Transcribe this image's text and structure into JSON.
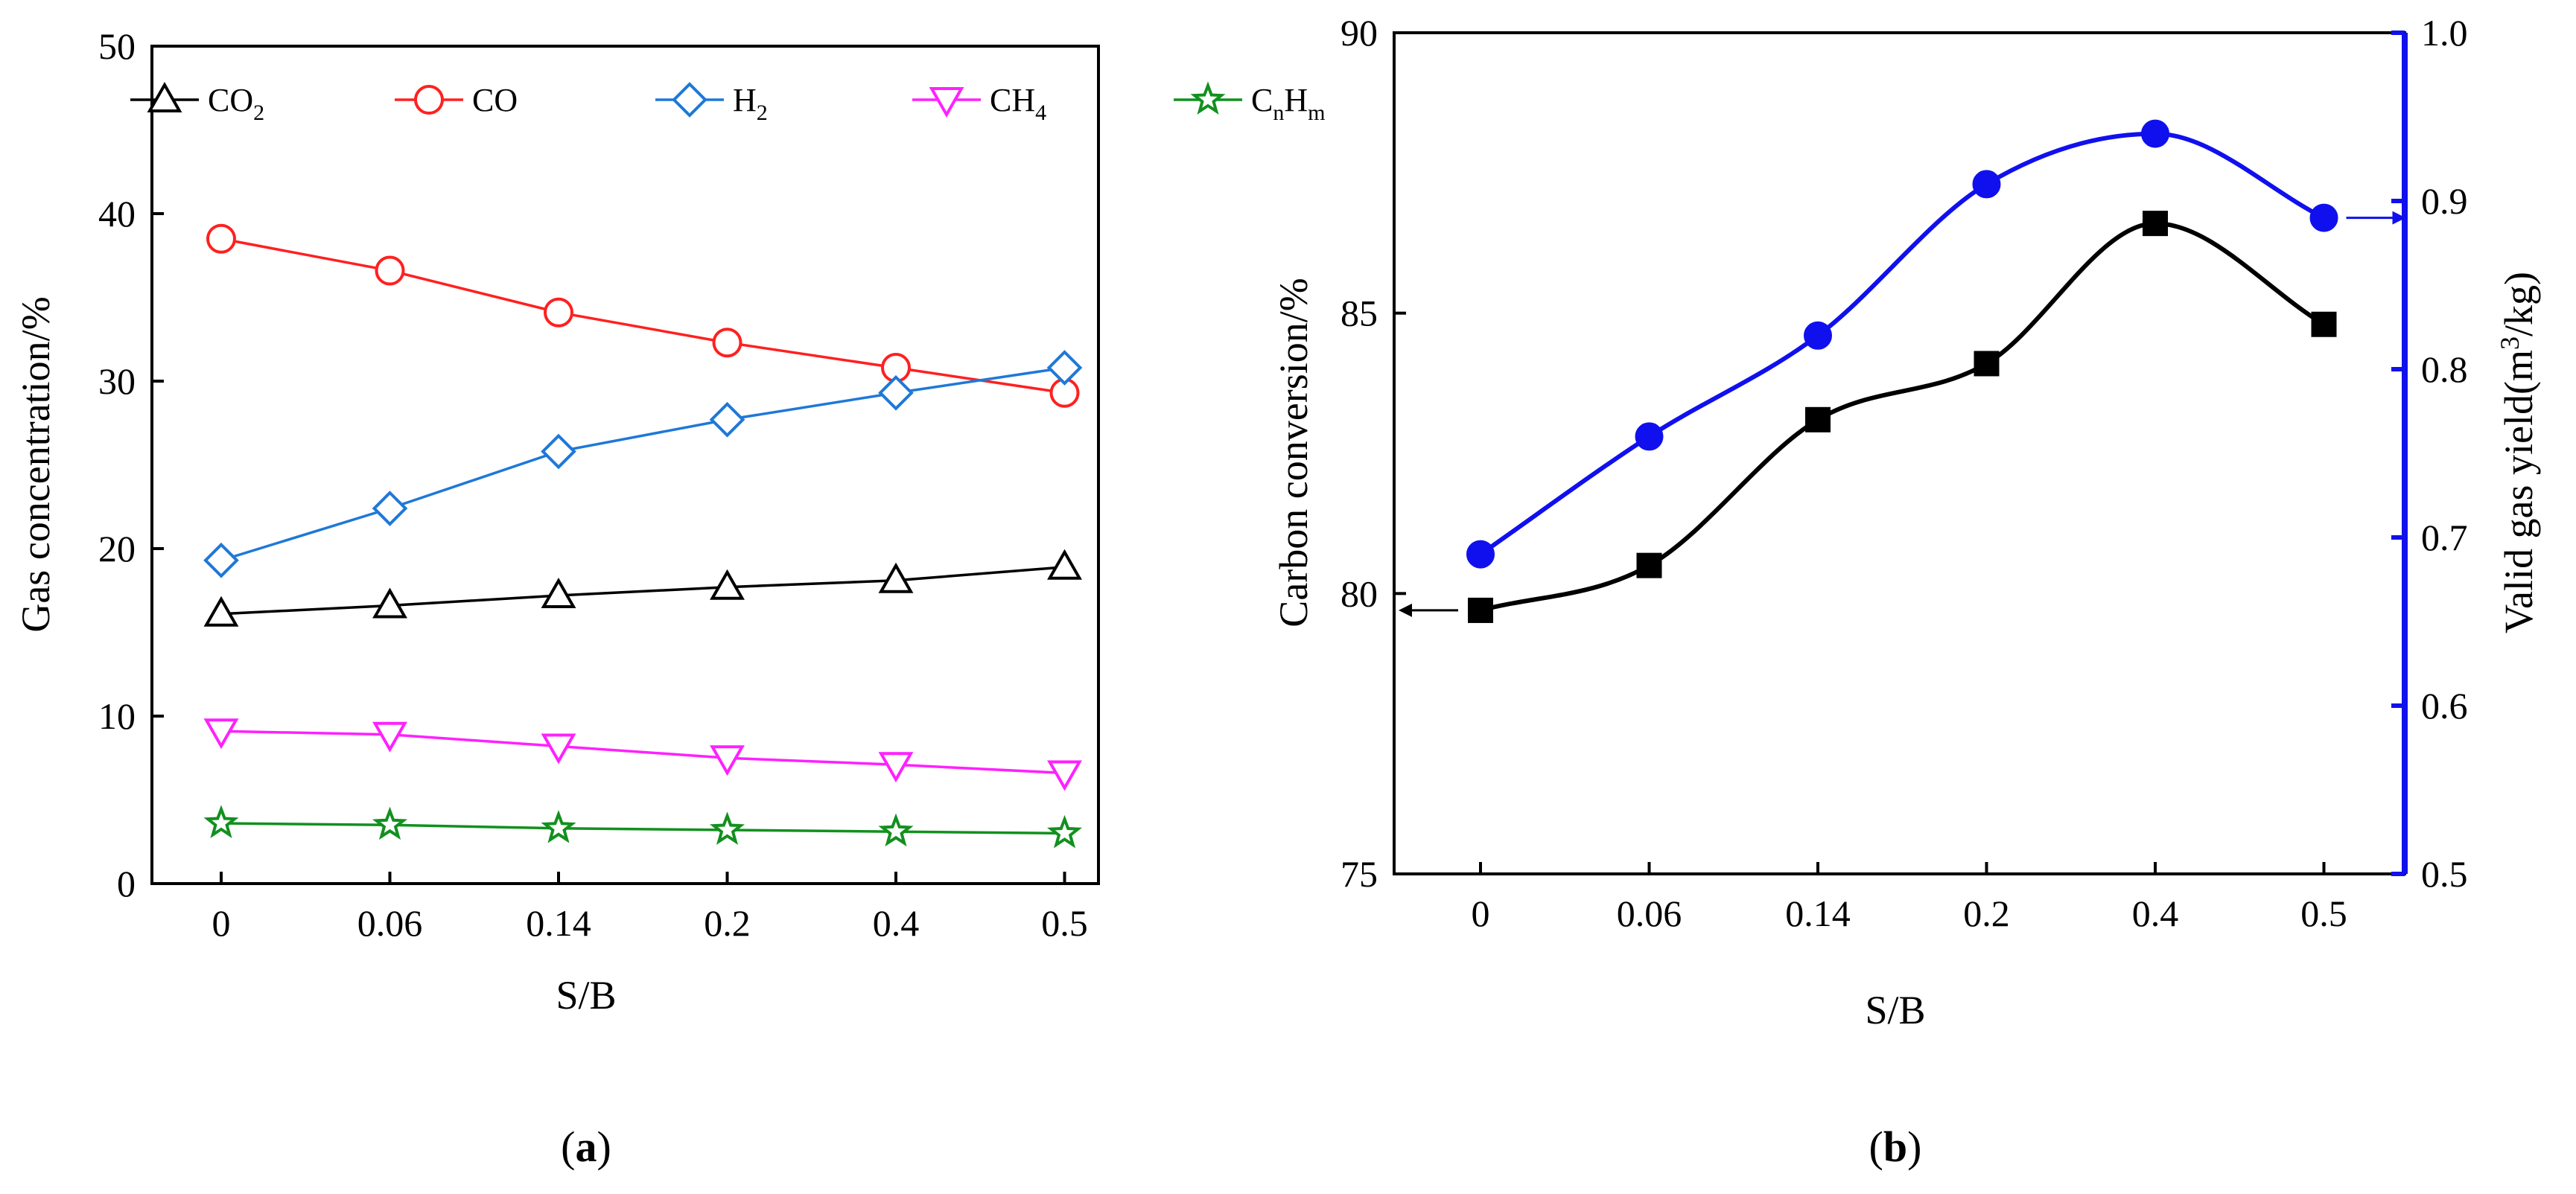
{
  "chart_data": [
    {
      "panel": "(a)",
      "type": "line",
      "xlabel": "S/B",
      "ylabel": "Gas concentration/%",
      "ylim": [
        0,
        50
      ],
      "yticks": [
        "0",
        "10",
        "20",
        "30",
        "40",
        "50"
      ],
      "categories": [
        "0",
        "0.06",
        "0.14",
        "0.2",
        "0.4",
        "0.5"
      ],
      "legend_position": "top",
      "series": [
        {
          "key": "co2",
          "name": "CO2",
          "label_main": "CO",
          "label_sub": "2",
          "marker": "triangle-up",
          "color": "#000000",
          "values": [
            16.1,
            16.6,
            17.2,
            17.7,
            18.1,
            18.9
          ]
        },
        {
          "key": "co",
          "name": "CO",
          "label_main": "CO",
          "label_sub": "",
          "marker": "circle",
          "color": "#ff2020",
          "values": [
            38.5,
            36.6,
            34.1,
            32.3,
            30.8,
            29.3
          ]
        },
        {
          "key": "h2",
          "name": "H2",
          "label_main": "H",
          "label_sub": "2",
          "marker": "diamond",
          "color": "#1e78d8",
          "values": [
            19.3,
            22.4,
            25.8,
            27.7,
            29.3,
            30.8
          ]
        },
        {
          "key": "ch4",
          "name": "CH4",
          "label_main": "CH",
          "label_sub": "4",
          "marker": "triangle-down",
          "color": "#ff20ff",
          "values": [
            9.1,
            8.9,
            8.2,
            7.5,
            7.1,
            6.6
          ]
        },
        {
          "key": "cnhm",
          "name": "CnHm",
          "label_main": "C",
          "label_sub": "n",
          "label_main2": "H",
          "label_sub2": "m",
          "marker": "star",
          "color": "#12901e",
          "values": [
            3.6,
            3.5,
            3.3,
            3.2,
            3.1,
            3.0
          ]
        }
      ]
    },
    {
      "panel": "(b)",
      "type": "scatter",
      "xlabel": "S/B",
      "ylabel_left": "Carbon conversion/%",
      "ylabel_right": "Valid gas yield(m3/kg)",
      "ylabel_right_parts": {
        "main": "Valid gas yield(m",
        "sup": "3",
        "rest": "/kg)"
      },
      "ylim_left": [
        75,
        90
      ],
      "yticks_left": [
        "75",
        "80",
        "85",
        "90"
      ],
      "ylim_right": [
        0.5,
        1.0
      ],
      "yticks_right": [
        "0.5",
        "0.6",
        "0.7",
        "0.8",
        "0.9",
        "1.0"
      ],
      "categories": [
        "0",
        "0.06",
        "0.14",
        "0.2",
        "0.4",
        "0.5"
      ],
      "series": [
        {
          "key": "carbon",
          "name": "Carbon conversion",
          "axis": "left",
          "marker": "square",
          "color": "#000000",
          "values": [
            79.7,
            80.5,
            83.1,
            84.1,
            86.6,
            84.8
          ],
          "fit_curve": true,
          "arrow": "left"
        },
        {
          "key": "gas",
          "name": "Valid gas yield",
          "axis": "right",
          "marker": "circle",
          "color": "#1010ee",
          "values": [
            0.69,
            0.76,
            0.82,
            0.91,
            0.94,
            0.89
          ],
          "fit_curve": true,
          "arrow": "right"
        }
      ]
    }
  ],
  "captions": {
    "a": "(a)",
    "b": "(b)"
  }
}
